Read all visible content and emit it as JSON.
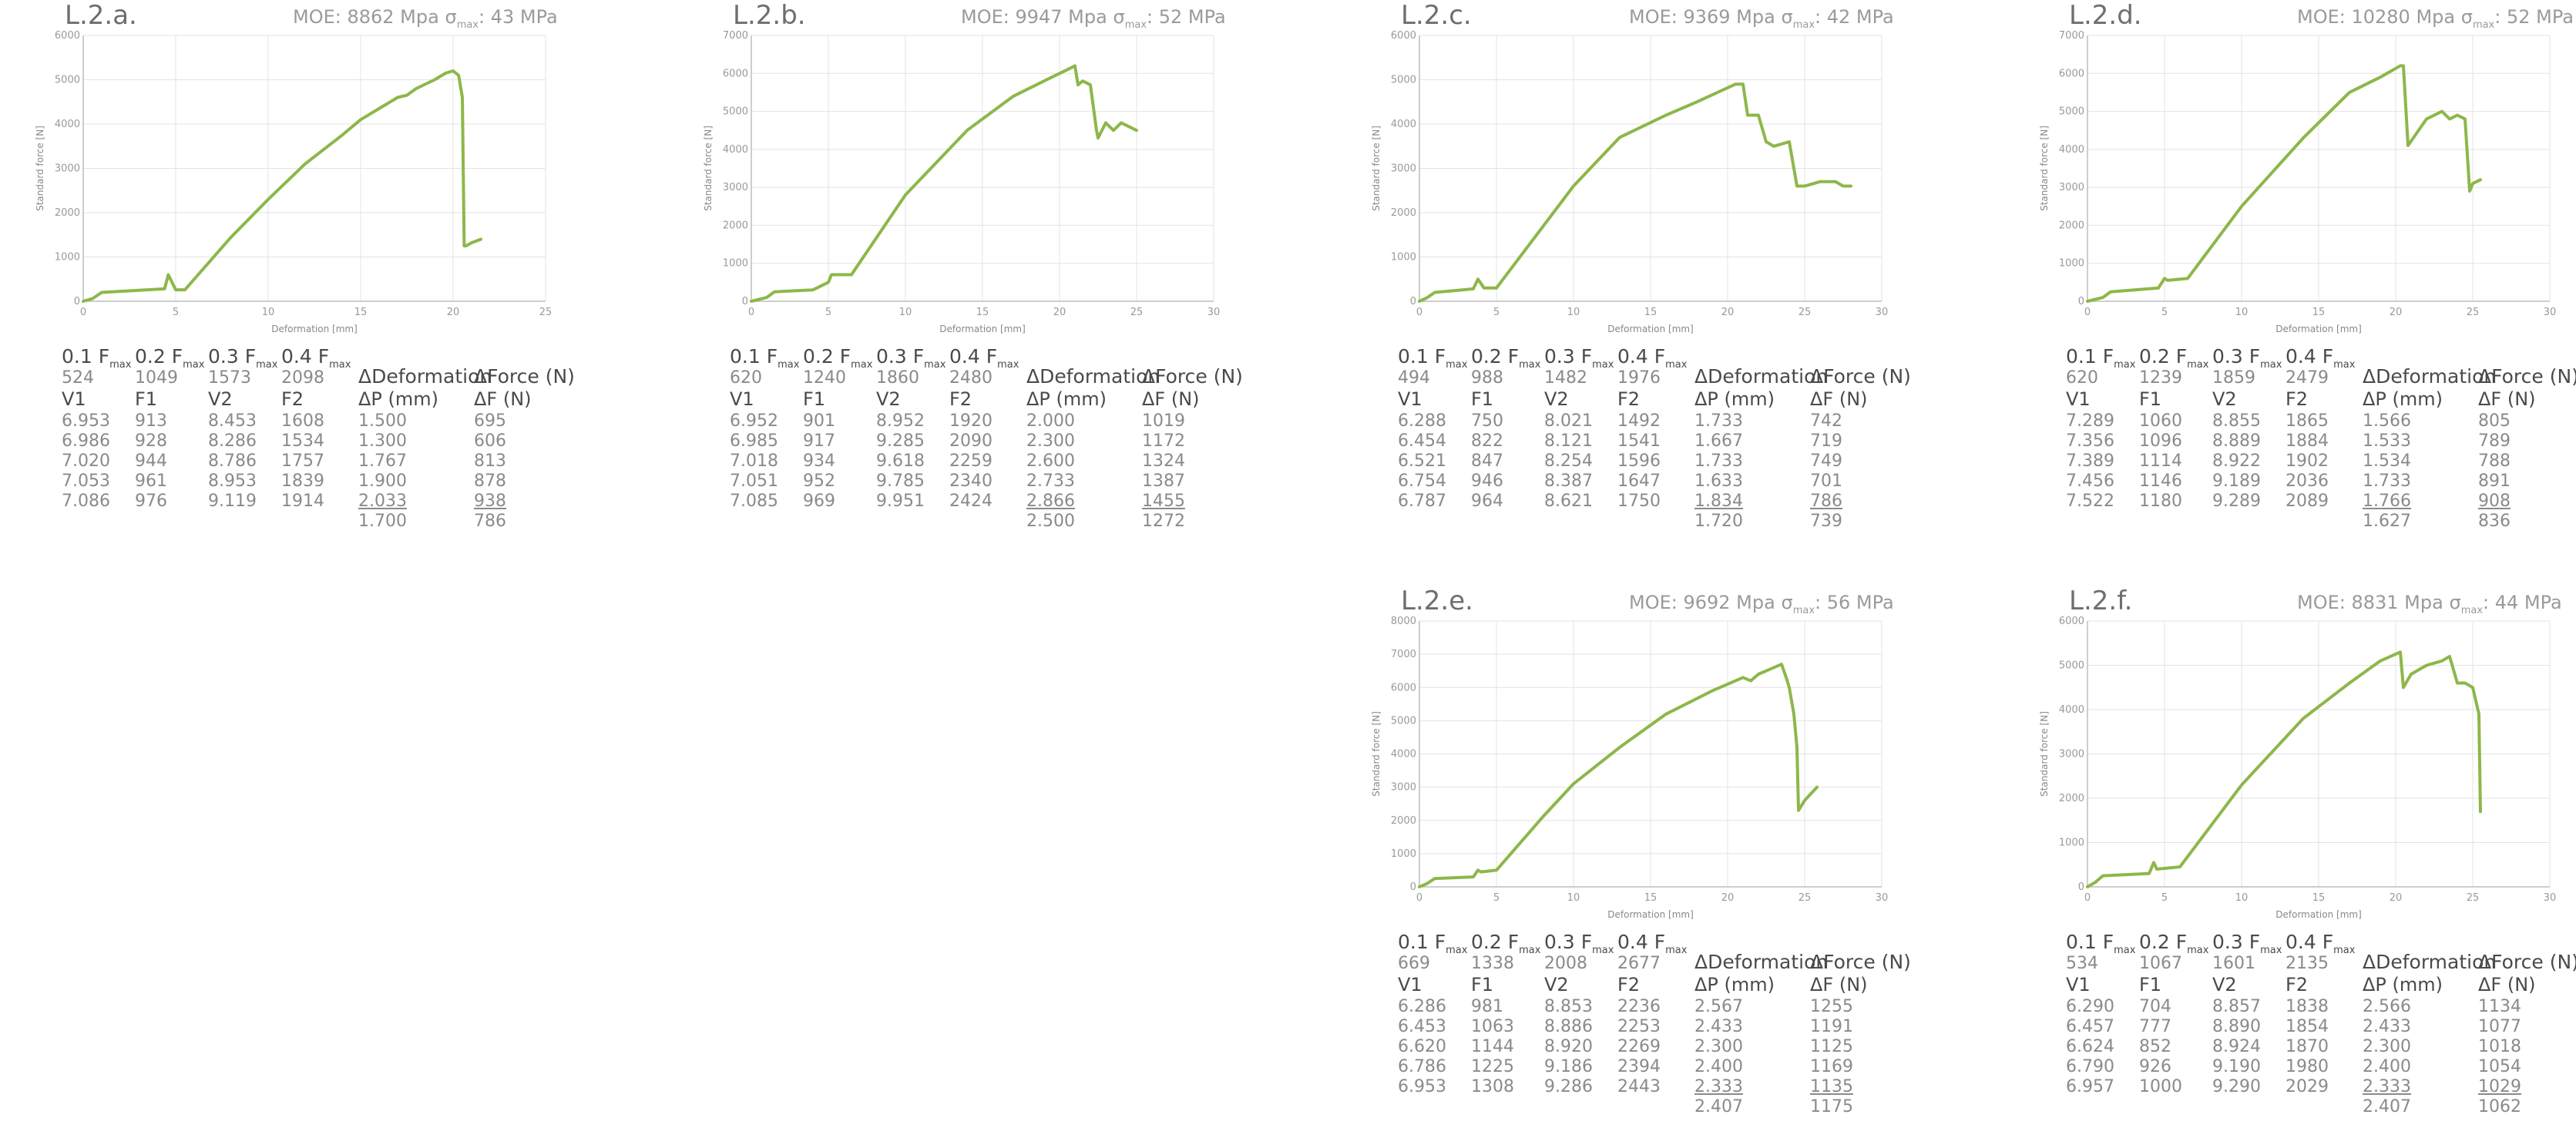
{
  "colors": {
    "series": "#8db74a",
    "grid": "#e3e3e3",
    "axis": "#bdbdbd"
  },
  "table_headers": {
    "f": [
      "0.1 F",
      "0.2 F",
      "0.3 F",
      "0.4 F"
    ],
    "f_sub": "max",
    "ddef": "ΔDeformation",
    "dforce": "ΔForce (N)",
    "v1": "V1",
    "f1": "F1",
    "v2": "V2",
    "f2": "F2",
    "dp": "ΔP (mm)",
    "df": "ΔF (N)"
  },
  "panels": [
    {
      "title": "L.2.a.",
      "moe": "MOE: 8862 Mpa",
      "sigma": "σ",
      "sigma_sub": "max",
      "sigma_val": ": 43 MPa",
      "fvals": [
        "524",
        "1049",
        "1573",
        "2098"
      ],
      "rows": [
        [
          "6.953",
          "913",
          "8.453",
          "1608",
          "1.500",
          "695"
        ],
        [
          "6.986",
          "928",
          "8.286",
          "1534",
          "1.300",
          "606"
        ],
        [
          "7.020",
          "944",
          "8.786",
          "1757",
          "1.767",
          "813"
        ],
        [
          "7.053",
          "961",
          "8.953",
          "1839",
          "1.900",
          "878"
        ],
        [
          "7.086",
          "976",
          "9.119",
          "1914",
          "2.033",
          "938"
        ]
      ],
      "avg": [
        "1.700",
        "786"
      ]
    },
    {
      "title": "L.2.b.",
      "moe": "MOE: 9947 Mpa",
      "sigma": "σ",
      "sigma_sub": "max",
      "sigma_val": ": 52 MPa",
      "fvals": [
        "620",
        "1240",
        "1860",
        "2480"
      ],
      "rows": [
        [
          "6.952",
          "901",
          "8.952",
          "1920",
          "2.000",
          "1019"
        ],
        [
          "6.985",
          "917",
          "9.285",
          "2090",
          "2.300",
          "1172"
        ],
        [
          "7.018",
          "934",
          "9.618",
          "2259",
          "2.600",
          "1324"
        ],
        [
          "7.051",
          "952",
          "9.785",
          "2340",
          "2.733",
          "1387"
        ],
        [
          "7.085",
          "969",
          "9.951",
          "2424",
          "2.866",
          "1455"
        ]
      ],
      "avg": [
        "2.500",
        "1272"
      ]
    },
    {
      "title": "L.2.c.",
      "moe": "MOE: 9369 Mpa",
      "sigma": "σ",
      "sigma_sub": "max",
      "sigma_val": ": 42 MPa",
      "fvals": [
        "494",
        "988",
        "1482",
        "1976"
      ],
      "rows": [
        [
          "6.288",
          "750",
          "8.021",
          "1492",
          "1.733",
          "742"
        ],
        [
          "6.454",
          "822",
          "8.121",
          "1541",
          "1.667",
          "719"
        ],
        [
          "6.521",
          "847",
          "8.254",
          "1596",
          "1.733",
          "749"
        ],
        [
          "6.754",
          "946",
          "8.387",
          "1647",
          "1.633",
          "701"
        ],
        [
          "6.787",
          "964",
          "8.621",
          "1750",
          "1.834",
          "786"
        ]
      ],
      "avg": [
        "1.720",
        "739"
      ]
    },
    {
      "title": "L.2.d.",
      "moe": "MOE: 10280 Mpa",
      "sigma": "σ",
      "sigma_sub": "max",
      "sigma_val": ": 52 MPa",
      "fvals": [
        "620",
        "1239",
        "1859",
        "2479"
      ],
      "rows": [
        [
          "7.289",
          "1060",
          "8.855",
          "1865",
          "1.566",
          "805"
        ],
        [
          "7.356",
          "1096",
          "8.889",
          "1884",
          "1.533",
          "789"
        ],
        [
          "7.389",
          "1114",
          "8.922",
          "1902",
          "1.534",
          "788"
        ],
        [
          "7.456",
          "1146",
          "9.189",
          "2036",
          "1.733",
          "891"
        ],
        [
          "7.522",
          "1180",
          "9.289",
          "2089",
          "1.766",
          "908"
        ]
      ],
      "avg": [
        "1.627",
        "836"
      ]
    },
    {
      "title": "L.2.e.",
      "moe": "MOE: 9692 Mpa",
      "sigma": "σ",
      "sigma_sub": "max",
      "sigma_val": ": 56 MPa",
      "fvals": [
        "669",
        "1338",
        "2008",
        "2677"
      ],
      "rows": [
        [
          "6.286",
          "981",
          "8.853",
          "2236",
          "2.567",
          "1255"
        ],
        [
          "6.453",
          "1063",
          "8.886",
          "2253",
          "2.433",
          "1191"
        ],
        [
          "6.620",
          "1144",
          "8.920",
          "2269",
          "2.300",
          "1125"
        ],
        [
          "6.786",
          "1225",
          "9.186",
          "2394",
          "2.400",
          "1169"
        ],
        [
          "6.953",
          "1308",
          "9.286",
          "2443",
          "2.333",
          "1135"
        ]
      ],
      "avg": [
        "2.407",
        "1175"
      ]
    },
    {
      "title": "L.2.f.",
      "moe": "MOE: 8831 Mpa",
      "sigma": "σ",
      "sigma_sub": "max",
      "sigma_val": ": 44 MPa",
      "fvals": [
        "534",
        "1067",
        "1601",
        "2135"
      ],
      "rows": [
        [
          "6.290",
          "704",
          "8.857",
          "1838",
          "2.566",
          "1134"
        ],
        [
          "6.457",
          "777",
          "8.890",
          "1854",
          "2.433",
          "1077"
        ],
        [
          "6.624",
          "852",
          "8.924",
          "1870",
          "2.300",
          "1018"
        ],
        [
          "6.790",
          "926",
          "9.190",
          "1980",
          "2.400",
          "1054"
        ],
        [
          "6.957",
          "1000",
          "9.290",
          "2029",
          "2.333",
          "1029"
        ]
      ],
      "avg": [
        "2.407",
        "1062"
      ]
    }
  ],
  "chart_data": [
    {
      "type": "line",
      "xlabel": "Deformation [mm]",
      "ylabel": "Standard force [N]",
      "xlim": [
        0,
        25
      ],
      "ylim": [
        0,
        6000
      ],
      "xticks": [
        0,
        5,
        10,
        15,
        20,
        25
      ],
      "yticks": [
        0,
        1000,
        2000,
        3000,
        4000,
        5000,
        6000
      ],
      "series": [
        {
          "x": [
            0,
            0.5,
            1,
            4.4,
            4.6,
            5,
            5.5,
            8,
            10,
            12,
            14,
            15,
            16,
            17,
            17.5,
            18,
            19,
            19.6,
            20,
            20.3,
            20.5,
            20.6,
            20.7,
            21,
            21.5
          ],
          "y": [
            0,
            60,
            200,
            280,
            600,
            260,
            260,
            1450,
            2300,
            3100,
            3750,
            4100,
            4350,
            4600,
            4650,
            4800,
            5000,
            5150,
            5200,
            5100,
            4600,
            1250,
            1250,
            1320,
            1400
          ]
        }
      ],
      "grid": true
    },
    {
      "type": "line",
      "xlabel": "Deformation [mm]",
      "ylabel": "Standard force [N]",
      "xlim": [
        0,
        30
      ],
      "ylim": [
        0,
        7000
      ],
      "xticks": [
        0,
        5,
        10,
        15,
        20,
        25,
        30
      ],
      "yticks": [
        0,
        1000,
        2000,
        3000,
        4000,
        5000,
        6000,
        7000
      ],
      "series": [
        {
          "x": [
            0,
            1,
            1.5,
            4,
            5,
            5.2,
            6.5,
            10,
            14,
            17,
            19,
            20.5,
            21,
            21.2,
            21.5,
            22,
            22.4,
            22.5,
            23,
            23.5,
            24,
            25
          ],
          "y": [
            0,
            100,
            250,
            300,
            500,
            700,
            700,
            2800,
            4500,
            5400,
            5800,
            6100,
            6200,
            5700,
            5800,
            5700,
            4500,
            4300,
            4700,
            4500,
            4700,
            4500
          ]
        }
      ],
      "grid": true
    },
    {
      "type": "line",
      "xlabel": "Deformation [mm]",
      "ylabel": "Standard force [N]",
      "xlim": [
        0,
        30
      ],
      "ylim": [
        0,
        6000
      ],
      "xticks": [
        0,
        5,
        10,
        15,
        20,
        25,
        30
      ],
      "yticks": [
        0,
        1000,
        2000,
        3000,
        4000,
        5000,
        6000
      ],
      "series": [
        {
          "x": [
            0,
            0.5,
            1,
            3.5,
            3.8,
            4.2,
            5,
            10,
            13,
            16,
            18,
            20.5,
            21,
            21.3,
            22,
            22.5,
            23,
            24,
            24.5,
            25,
            26,
            27,
            27.5,
            28
          ],
          "y": [
            0,
            80,
            200,
            280,
            500,
            300,
            300,
            2600,
            3700,
            4200,
            4500,
            4900,
            4900,
            4200,
            4200,
            3600,
            3500,
            3600,
            2600,
            2600,
            2700,
            2700,
            2600,
            2600
          ]
        }
      ],
      "grid": true
    },
    {
      "type": "line",
      "xlabel": "Deformation [mm]",
      "ylabel": "Standard force [N]",
      "xlim": [
        0,
        30
      ],
      "ylim": [
        0,
        7000
      ],
      "xticks": [
        0,
        5,
        10,
        15,
        20,
        25,
        30
      ],
      "yticks": [
        0,
        1000,
        2000,
        3000,
        4000,
        5000,
        6000,
        7000
      ],
      "series": [
        {
          "x": [
            0,
            1,
            1.5,
            4.6,
            5,
            5.2,
            6.5,
            10,
            14,
            17,
            19,
            20.3,
            20.5,
            20.8,
            22,
            23,
            23.5,
            24,
            24.5,
            24.8,
            25,
            25.5
          ],
          "y": [
            0,
            100,
            250,
            350,
            600,
            550,
            600,
            2500,
            4300,
            5500,
            5900,
            6200,
            6200,
            4100,
            4800,
            5000,
            4800,
            4900,
            4800,
            2900,
            3100,
            3200
          ]
        }
      ],
      "grid": true
    },
    {
      "type": "line",
      "xlabel": "Deformation [mm]",
      "ylabel": "Standard force [N]",
      "xlim": [
        0,
        30
      ],
      "ylim": [
        0,
        8000
      ],
      "xticks": [
        0,
        5,
        10,
        15,
        20,
        25,
        30
      ],
      "yticks": [
        0,
        1000,
        2000,
        3000,
        4000,
        5000,
        6000,
        7000,
        8000
      ],
      "series": [
        {
          "x": [
            0,
            0.5,
            1,
            3.5,
            3.8,
            4,
            5,
            8,
            10,
            13,
            16,
            19,
            21,
            21.5,
            22,
            23,
            23.5,
            23.8,
            24,
            24.3,
            24.5,
            24.6,
            25,
            25.8
          ],
          "y": [
            0,
            100,
            250,
            300,
            500,
            450,
            500,
            2100,
            3100,
            4200,
            5200,
            5900,
            6300,
            6200,
            6400,
            6600,
            6700,
            6300,
            6000,
            5200,
            4200,
            2300,
            2600,
            3000
          ]
        }
      ],
      "grid": true
    },
    {
      "type": "line",
      "xlabel": "Deformation [mm]",
      "ylabel": "Standard force [N]",
      "xlim": [
        0,
        30
      ],
      "ylim": [
        0,
        6000
      ],
      "xticks": [
        0,
        5,
        10,
        15,
        20,
        25,
        30
      ],
      "yticks": [
        0,
        1000,
        2000,
        3000,
        4000,
        5000,
        6000
      ],
      "series": [
        {
          "x": [
            0,
            0.5,
            1,
            4,
            4.3,
            4.5,
            6,
            10,
            14,
            17,
            19,
            20.3,
            20.5,
            21,
            22,
            23,
            23.5,
            24,
            24.5,
            25,
            25.2,
            25.4,
            25.5
          ],
          "y": [
            0,
            100,
            250,
            300,
            550,
            400,
            450,
            2300,
            3800,
            4600,
            5100,
            5300,
            4500,
            4800,
            5000,
            5100,
            5200,
            4600,
            4600,
            4500,
            4200,
            3900,
            1700
          ]
        }
      ],
      "grid": true
    }
  ]
}
